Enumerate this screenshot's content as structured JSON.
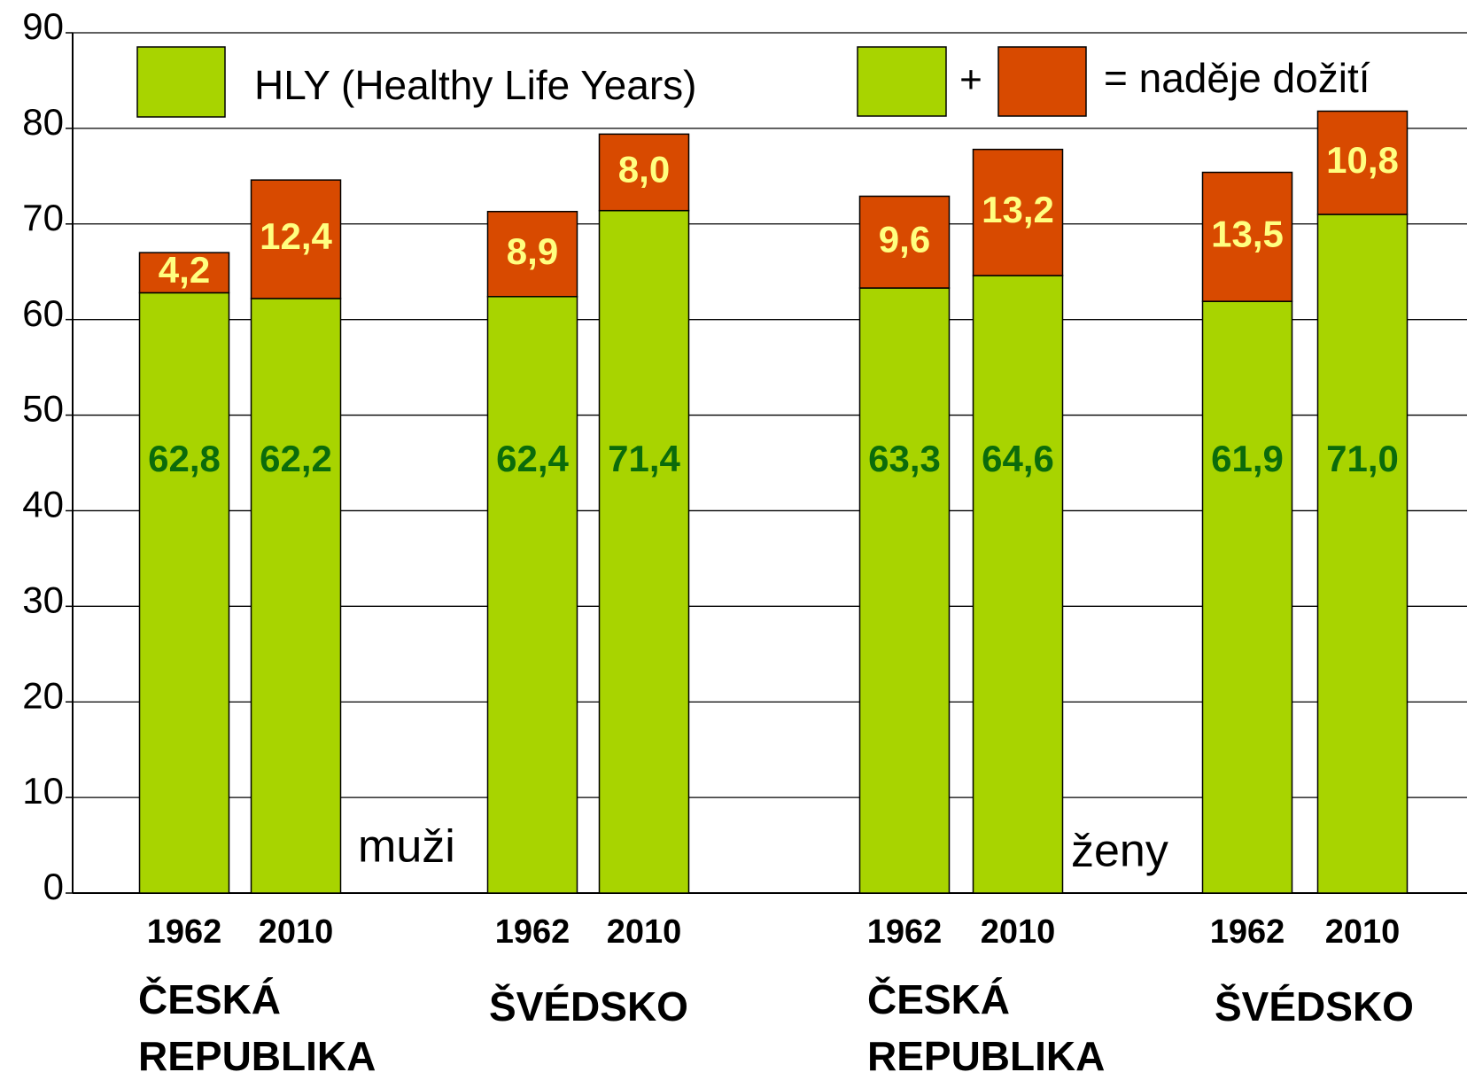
{
  "chart_data": {
    "type": "stacked_bar",
    "categories": [
      "1962",
      "2010",
      "1962",
      "2010",
      "1962",
      "2010",
      "1962",
      "2010"
    ],
    "groups": [
      {
        "label": [
          "ČESKÁ",
          "REPUBLIKA"
        ]
      },
      {
        "label": [
          "ŠVÉDSKO"
        ]
      },
      {
        "label": [
          "ČESKÁ",
          "REPUBLIKA"
        ]
      },
      {
        "label": [
          "ŠVÉDSKO"
        ]
      }
    ],
    "annotations": [
      "muži",
      "ženy"
    ],
    "legend": {
      "hly": "HLY (Healthy Life Years)",
      "plus": "+",
      "total": "= naděje dožití"
    },
    "series": [
      {
        "name": "HLY (Healthy Life Years)",
        "color": "#a8d400",
        "values": [
          62.8,
          62.2,
          62.4,
          71.4,
          63.3,
          64.6,
          61.9,
          71.0
        ],
        "value_labels": [
          "62,8",
          "62,2",
          "62,4",
          "71,4",
          "63,3",
          "64,6",
          "61,9",
          "71,0"
        ]
      },
      {
        "color": "#d84a00",
        "values": [
          4.2,
          12.4,
          8.9,
          8.0,
          9.6,
          13.2,
          13.5,
          10.8
        ],
        "value_labels": [
          "4,2",
          "12,4",
          "8,9",
          "8,0",
          "9,6",
          "13,2",
          "13,5",
          "10,8"
        ]
      }
    ],
    "ylim": [
      0,
      90
    ],
    "yticks": [
      0,
      10,
      20,
      30,
      40,
      50,
      60,
      70,
      80,
      90
    ],
    "grid": true
  }
}
